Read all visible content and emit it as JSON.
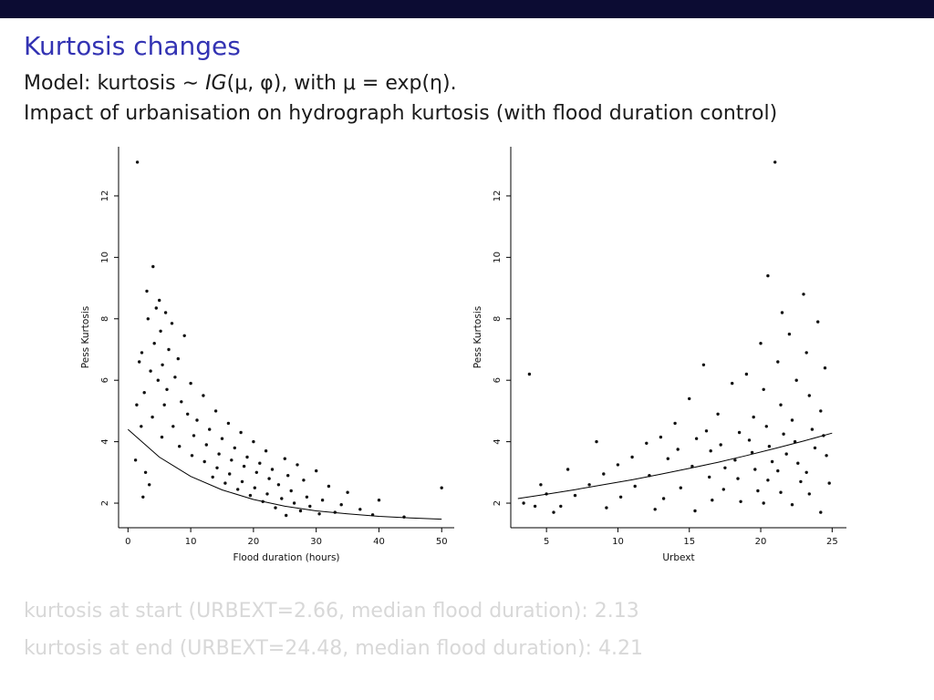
{
  "slide": {
    "title": "Kurtosis changes",
    "model_line": {
      "pre": "Model: kurtosis ∼ ",
      "ig": "IG",
      "post": "(μ, φ), with μ = exp(η)."
    },
    "subtitle": "Impact of urbanisation on hydrograph kurtosis (with flood duration control)",
    "footer_lines": [
      "kurtosis at start (URBEXT=2.66, median flood duration): 2.13",
      "kurtosis at end (URBEXT=24.48, median flood duration): 4.21"
    ],
    "colors": {
      "top_bar": "#0c0c33",
      "title": "#3333b3",
      "footer_text": "#d8d8d8",
      "points": "#111111",
      "axis": "#000000"
    }
  },
  "chart_data": [
    {
      "type": "scatter",
      "title": "",
      "xlabel": "Flood duration (hours)",
      "ylabel": "Pess Kurtosis",
      "xlim": [
        -1.5,
        52
      ],
      "ylim": [
        1.2,
        13.6
      ],
      "xticks": [
        0,
        10,
        20,
        30,
        40,
        50
      ],
      "yticks": [
        2,
        4,
        6,
        8,
        10,
        12
      ],
      "grid": false,
      "legend": "none",
      "points": [
        [
          1.5,
          13.1
        ],
        [
          4,
          9.7
        ],
        [
          3,
          8.9
        ],
        [
          5,
          8.6
        ],
        [
          4.5,
          8.35
        ],
        [
          6,
          8.2
        ],
        [
          3.2,
          8.0
        ],
        [
          7,
          7.85
        ],
        [
          5.2,
          7.6
        ],
        [
          9,
          7.45
        ],
        [
          4.2,
          7.2
        ],
        [
          6.5,
          7.0
        ],
        [
          2.2,
          6.9
        ],
        [
          8,
          6.7
        ],
        [
          5.5,
          6.5
        ],
        [
          3.6,
          6.3
        ],
        [
          7.5,
          6.1
        ],
        [
          4.8,
          6.0
        ],
        [
          10,
          5.9
        ],
        [
          6.2,
          5.7
        ],
        [
          2.6,
          5.6
        ],
        [
          12,
          5.5
        ],
        [
          8.5,
          5.3
        ],
        [
          5.8,
          5.2
        ],
        [
          14,
          5.0
        ],
        [
          9.5,
          4.9
        ],
        [
          3.9,
          4.8
        ],
        [
          11,
          4.7
        ],
        [
          16,
          4.6
        ],
        [
          7.2,
          4.5
        ],
        [
          13,
          4.4
        ],
        [
          18,
          4.3
        ],
        [
          10.5,
          4.2
        ],
        [
          5.4,
          4.15
        ],
        [
          15,
          4.1
        ],
        [
          20,
          4.0
        ],
        [
          12.5,
          3.9
        ],
        [
          8.2,
          3.85
        ],
        [
          17,
          3.8
        ],
        [
          22,
          3.7
        ],
        [
          14.5,
          3.6
        ],
        [
          10.2,
          3.55
        ],
        [
          19,
          3.5
        ],
        [
          25,
          3.45
        ],
        [
          16.5,
          3.4
        ],
        [
          12.2,
          3.35
        ],
        [
          21,
          3.3
        ],
        [
          27,
          3.25
        ],
        [
          18.5,
          3.2
        ],
        [
          14.2,
          3.15
        ],
        [
          23,
          3.1
        ],
        [
          30,
          3.05
        ],
        [
          20.5,
          3.0
        ],
        [
          16.2,
          2.95
        ],
        [
          25.5,
          2.9
        ],
        [
          13.5,
          2.85
        ],
        [
          22.5,
          2.8
        ],
        [
          28,
          2.75
        ],
        [
          18.2,
          2.7
        ],
        [
          15.5,
          2.65
        ],
        [
          24,
          2.6
        ],
        [
          32,
          2.55
        ],
        [
          20.2,
          2.5
        ],
        [
          17.5,
          2.45
        ],
        [
          26,
          2.4
        ],
        [
          35,
          2.35
        ],
        [
          22.2,
          2.3
        ],
        [
          19.5,
          2.25
        ],
        [
          28.5,
          2.2
        ],
        [
          24.5,
          2.15
        ],
        [
          31,
          2.1
        ],
        [
          21.5,
          2.05
        ],
        [
          26.5,
          2.0
        ],
        [
          34,
          1.95
        ],
        [
          29,
          1.9
        ],
        [
          23.5,
          1.85
        ],
        [
          37,
          1.8
        ],
        [
          27.5,
          1.75
        ],
        [
          40,
          2.1
        ],
        [
          33,
          1.7
        ],
        [
          30.5,
          1.65
        ],
        [
          25.2,
          1.6
        ],
        [
          39,
          1.62
        ],
        [
          50,
          2.5
        ],
        [
          44,
          1.55
        ],
        [
          2.4,
          2.2
        ],
        [
          1.2,
          3.4
        ],
        [
          3.4,
          2.6
        ],
        [
          2.1,
          4.5
        ],
        [
          1.4,
          5.2
        ],
        [
          2.8,
          3.0
        ],
        [
          1.8,
          6.6
        ]
      ],
      "trend_curve": [
        [
          0,
          4.4
        ],
        [
          5,
          3.5
        ],
        [
          10,
          2.87
        ],
        [
          15,
          2.43
        ],
        [
          20,
          2.12
        ],
        [
          25,
          1.9
        ],
        [
          30,
          1.75
        ],
        [
          35,
          1.65
        ],
        [
          40,
          1.57
        ],
        [
          45,
          1.52
        ],
        [
          50,
          1.48
        ]
      ]
    },
    {
      "type": "scatter",
      "title": "",
      "xlabel": "Urbext",
      "ylabel": "Pess Kurtosis",
      "xlim": [
        2.5,
        26
      ],
      "ylim": [
        1.2,
        13.6
      ],
      "xticks": [
        5,
        10,
        15,
        20,
        25
      ],
      "yticks": [
        2,
        4,
        6,
        8,
        10,
        12
      ],
      "grid": false,
      "legend": "none",
      "points": [
        [
          21,
          13.1
        ],
        [
          20.5,
          9.4
        ],
        [
          23,
          8.8
        ],
        [
          21.5,
          8.2
        ],
        [
          24,
          7.9
        ],
        [
          22,
          7.5
        ],
        [
          20,
          7.2
        ],
        [
          23.2,
          6.9
        ],
        [
          21.2,
          6.6
        ],
        [
          24.5,
          6.4
        ],
        [
          19,
          6.2
        ],
        [
          22.5,
          6.0
        ],
        [
          16,
          6.5
        ],
        [
          18,
          5.9
        ],
        [
          20.2,
          5.7
        ],
        [
          23.4,
          5.5
        ],
        [
          15,
          5.4
        ],
        [
          21.4,
          5.2
        ],
        [
          24.2,
          5.0
        ],
        [
          17,
          4.9
        ],
        [
          19.5,
          4.8
        ],
        [
          22.2,
          4.7
        ],
        [
          14,
          4.6
        ],
        [
          20.4,
          4.5
        ],
        [
          23.6,
          4.4
        ],
        [
          16.2,
          4.35
        ],
        [
          18.5,
          4.3
        ],
        [
          21.6,
          4.25
        ],
        [
          24.4,
          4.2
        ],
        [
          13,
          4.15
        ],
        [
          15.5,
          4.1
        ],
        [
          19.2,
          4.05
        ],
        [
          22.4,
          4.0
        ],
        [
          12,
          3.95
        ],
        [
          17.2,
          3.9
        ],
        [
          20.6,
          3.85
        ],
        [
          23.8,
          3.8
        ],
        [
          14.2,
          3.75
        ],
        [
          16.5,
          3.7
        ],
        [
          19.4,
          3.65
        ],
        [
          21.8,
          3.6
        ],
        [
          24.6,
          3.55
        ],
        [
          11,
          3.5
        ],
        [
          13.5,
          3.45
        ],
        [
          18.2,
          3.4
        ],
        [
          20.8,
          3.35
        ],
        [
          22.6,
          3.3
        ],
        [
          10,
          3.25
        ],
        [
          15.2,
          3.2
        ],
        [
          17.5,
          3.15
        ],
        [
          19.6,
          3.1
        ],
        [
          21.2,
          3.05
        ],
        [
          23.2,
          3.0
        ],
        [
          9,
          2.95
        ],
        [
          12.2,
          2.9
        ],
        [
          16.4,
          2.85
        ],
        [
          18.4,
          2.8
        ],
        [
          20.5,
          2.75
        ],
        [
          22.8,
          2.7
        ],
        [
          24.8,
          2.65
        ],
        [
          8,
          2.6
        ],
        [
          11.2,
          2.55
        ],
        [
          14.4,
          2.5
        ],
        [
          17.4,
          2.45
        ],
        [
          19.8,
          2.4
        ],
        [
          21.4,
          2.35
        ],
        [
          23.4,
          2.3
        ],
        [
          7,
          2.25
        ],
        [
          10.2,
          2.2
        ],
        [
          13.2,
          2.15
        ],
        [
          16.6,
          2.1
        ],
        [
          18.6,
          2.05
        ],
        [
          20.2,
          2.0
        ],
        [
          22.2,
          1.95
        ],
        [
          6,
          1.9
        ],
        [
          9.2,
          1.85
        ],
        [
          12.6,
          1.8
        ],
        [
          15.4,
          1.75
        ],
        [
          24.2,
          1.7
        ],
        [
          5,
          2.3
        ],
        [
          4.2,
          1.9
        ],
        [
          3.8,
          6.2
        ],
        [
          5.5,
          1.7
        ],
        [
          6.5,
          3.1
        ],
        [
          8.5,
          4.0
        ],
        [
          4.6,
          2.6
        ],
        [
          3.4,
          2.0
        ]
      ],
      "trend_curve": [
        [
          3,
          2.15
        ],
        [
          5,
          2.29
        ],
        [
          7,
          2.44
        ],
        [
          9,
          2.6
        ],
        [
          11,
          2.76
        ],
        [
          13,
          2.94
        ],
        [
          15,
          3.13
        ],
        [
          17,
          3.33
        ],
        [
          19,
          3.55
        ],
        [
          21,
          3.78
        ],
        [
          23,
          4.02
        ],
        [
          25,
          4.28
        ]
      ]
    }
  ]
}
